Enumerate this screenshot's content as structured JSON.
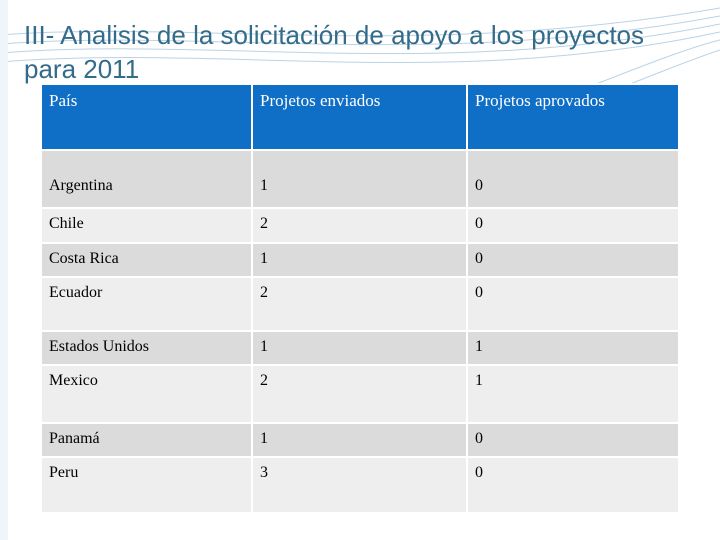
{
  "slide": {
    "title": "III- Analisis de la solicitación de apoyo a los proyectos para 2011"
  },
  "table": {
    "headers": [
      "País",
      "Projetos enviados",
      "Projetos aprovados"
    ],
    "rows": [
      [
        "Argentina",
        "1",
        "0"
      ],
      [
        "Chile",
        "2",
        "0"
      ],
      [
        "Costa Rica",
        "1",
        "0"
      ],
      [
        "Ecuador",
        "2",
        "0"
      ],
      [
        "Estados Unidos",
        "1",
        "1"
      ],
      [
        "Mexico",
        "2",
        "1"
      ],
      [
        "Panamá",
        "1",
        "0"
      ],
      [
        "Peru",
        "3",
        "0"
      ]
    ]
  },
  "colors": {
    "header_bg": "#0f6fc6",
    "title": "#336b8a",
    "row_dark": "#dbdbdb",
    "row_light": "#eeeeee"
  }
}
